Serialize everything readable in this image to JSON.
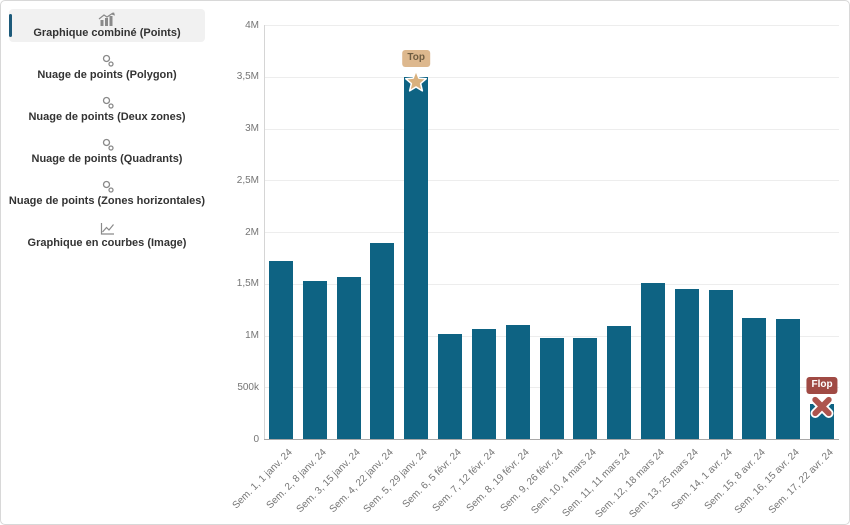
{
  "sidebar": {
    "items": [
      {
        "label": "Graphique combiné (Points)",
        "icon": "combined-chart-icon",
        "selected": true
      },
      {
        "label": "Nuage de points (Polygon)",
        "icon": "scatter-icon",
        "selected": false
      },
      {
        "label": "Nuage de points (Deux zones)",
        "icon": "scatter-icon",
        "selected": false
      },
      {
        "label": "Nuage de points (Quadrants)",
        "icon": "scatter-icon",
        "selected": false
      },
      {
        "label": "Nuage de points (Zones horizontales)",
        "icon": "scatter-icon",
        "selected": false
      },
      {
        "label": "Graphique en courbes (Image)",
        "icon": "line-chart-icon",
        "selected": false
      }
    ]
  },
  "colors": {
    "bar": "#0e6383",
    "selected_item_bg": "#f1f1f1",
    "selected_accent": "#1d5a7a",
    "grid": "#ededed",
    "axis": "#a8a8a8",
    "top_badge_bg": "#ddb88e",
    "top_badge_text": "#6e5c41",
    "top_star": "#d9b17e",
    "flop_badge_bg": "#a04a44",
    "flop_badge_text": "#ffffff",
    "flop_cross": "#ad544d"
  },
  "chart_data": {
    "type": "bar",
    "title": "",
    "xlabel": "",
    "ylabel": "",
    "grid": true,
    "legend": false,
    "ylim": [
      0,
      4000000
    ],
    "categories": [
      "Sem. 1, 1 janv. 24",
      "Sem. 2, 8 janv. 24",
      "Sem. 3, 15 janv. 24",
      "Sem. 4, 22 janv. 24",
      "Sem. 5, 29 janv. 24",
      "Sem. 6, 5 févr. 24",
      "Sem. 7, 12 févr. 24",
      "Sem. 8, 19 févr. 24",
      "Sem. 9, 26 févr. 24",
      "Sem. 10, 4 mars 24",
      "Sem. 11, 11 mars 24",
      "Sem. 12, 18 mars 24",
      "Sem. 13, 25 mars 24",
      "Sem. 14, 1 avr. 24",
      "Sem. 15, 8 avr. 24",
      "Sem. 16, 15 avr. 24",
      "Sem. 17, 22 avr. 24"
    ],
    "values": [
      1720000,
      1530000,
      1570000,
      1890000,
      3500000,
      1010000,
      1060000,
      1100000,
      980000,
      980000,
      1090000,
      1510000,
      1450000,
      1440000,
      1170000,
      1160000,
      340000
    ],
    "yticks": [
      {
        "value": 0,
        "label": "0"
      },
      {
        "value": 500000,
        "label": "500k"
      },
      {
        "value": 1000000,
        "label": "1M"
      },
      {
        "value": 1500000,
        "label": "1,5M"
      },
      {
        "value": 2000000,
        "label": "2M"
      },
      {
        "value": 2500000,
        "label": "2,5M"
      },
      {
        "value": 3000000,
        "label": "3M"
      },
      {
        "value": 3500000,
        "label": "3,5M"
      },
      {
        "value": 4000000,
        "label": "4M"
      }
    ],
    "annotations": [
      {
        "type": "top",
        "index": 4,
        "label": "Top",
        "marker": "star"
      },
      {
        "type": "flop",
        "index": 16,
        "label": "Flop",
        "marker": "cross"
      }
    ]
  }
}
